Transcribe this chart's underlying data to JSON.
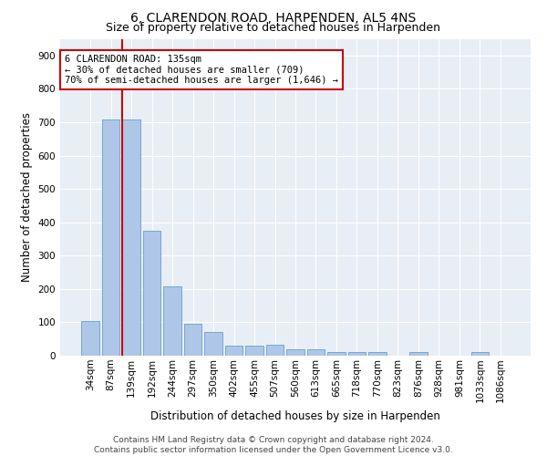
{
  "title": "6, CLARENDON ROAD, HARPENDEN, AL5 4NS",
  "subtitle": "Size of property relative to detached houses in Harpenden",
  "xlabel": "Distribution of detached houses by size in Harpenden",
  "ylabel": "Number of detached properties",
  "footnote1": "Contains HM Land Registry data © Crown copyright and database right 2024.",
  "footnote2": "Contains public sector information licensed under the Open Government Licence v3.0.",
  "categories": [
    "34sqm",
    "87sqm",
    "139sqm",
    "192sqm",
    "244sqm",
    "297sqm",
    "350sqm",
    "402sqm",
    "455sqm",
    "507sqm",
    "560sqm",
    "613sqm",
    "665sqm",
    "718sqm",
    "770sqm",
    "823sqm",
    "876sqm",
    "928sqm",
    "981sqm",
    "1033sqm",
    "1086sqm"
  ],
  "values": [
    103,
    707,
    707,
    375,
    207,
    96,
    72,
    30,
    30,
    32,
    20,
    20,
    10,
    10,
    10,
    0,
    10,
    0,
    0,
    10,
    0
  ],
  "bar_color": "#aec6e8",
  "bar_edge_color": "#6a9fc8",
  "vline_color": "#cc0000",
  "vline_x_index": 2,
  "annotation_text_line1": "6 CLARENDON ROAD: 135sqm",
  "annotation_text_line2": "← 30% of detached houses are smaller (709)",
  "annotation_text_line3": "70% of semi-detached houses are larger (1,646) →",
  "annotation_box_facecolor": "#ffffff",
  "annotation_box_edgecolor": "#cc0000",
  "ylim": [
    0,
    950
  ],
  "yticks": [
    0,
    100,
    200,
    300,
    400,
    500,
    600,
    700,
    800,
    900
  ],
  "fig_facecolor": "#ffffff",
  "axes_facecolor": "#e8eef5",
  "grid_color": "#ffffff",
  "title_fontsize": 10,
  "subtitle_fontsize": 9,
  "axis_label_fontsize": 8.5,
  "tick_fontsize": 7.5,
  "annotation_fontsize": 7.5,
  "footnote_fontsize": 6.5
}
